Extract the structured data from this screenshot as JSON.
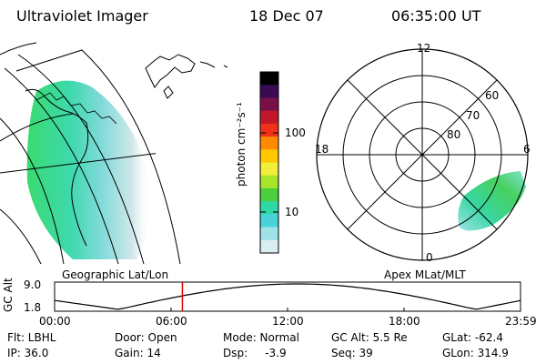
{
  "header": {
    "title": "Ultraviolet Imager",
    "date": "18 Dec 07",
    "time": "06:35:00 UT"
  },
  "colorbar": {
    "label": "photon cm⁻²s⁻¹",
    "ticks": [
      "100",
      "10"
    ],
    "colors": [
      "#000000",
      "#3b0a52",
      "#7a1048",
      "#c0182a",
      "#f03018",
      "#ff8a00",
      "#ffc800",
      "#f2ef3a",
      "#a8e62e",
      "#4ccf3c",
      "#2fd8a4",
      "#49d3d8",
      "#9fe3e8",
      "#d8eef0"
    ]
  },
  "left_map": {
    "caption": "Geographic Lat/Lon",
    "aurora_color": "#3fce9a"
  },
  "polar_plot": {
    "caption": "Apex MLat/MLT",
    "hour_labels": {
      "top": "12",
      "left": "18",
      "right": "6",
      "bottom": "0"
    },
    "lat_labels": [
      "60",
      "70",
      "80"
    ]
  },
  "gc_plot": {
    "ylabel": "GC Alt",
    "ymax": "9.0",
    "ymin": "1.8",
    "xticks": [
      "00:00",
      "06:00",
      "12:00",
      "18:00",
      "23:59"
    ],
    "marker_time_hours": 6.583
  },
  "info": {
    "filter": "Flt: LBHL",
    "door": "Door: Open",
    "mode": "Mode: Normal",
    "gc_alt": "GC Alt: 5.5 Re",
    "glat": "GLat: -62.4",
    "ip": "IP: 36.0",
    "gain": "Gain: 14",
    "dsp": "Dsp:     -3.9",
    "seq": "Seq: 39",
    "glon": "GLon: 314.9"
  }
}
